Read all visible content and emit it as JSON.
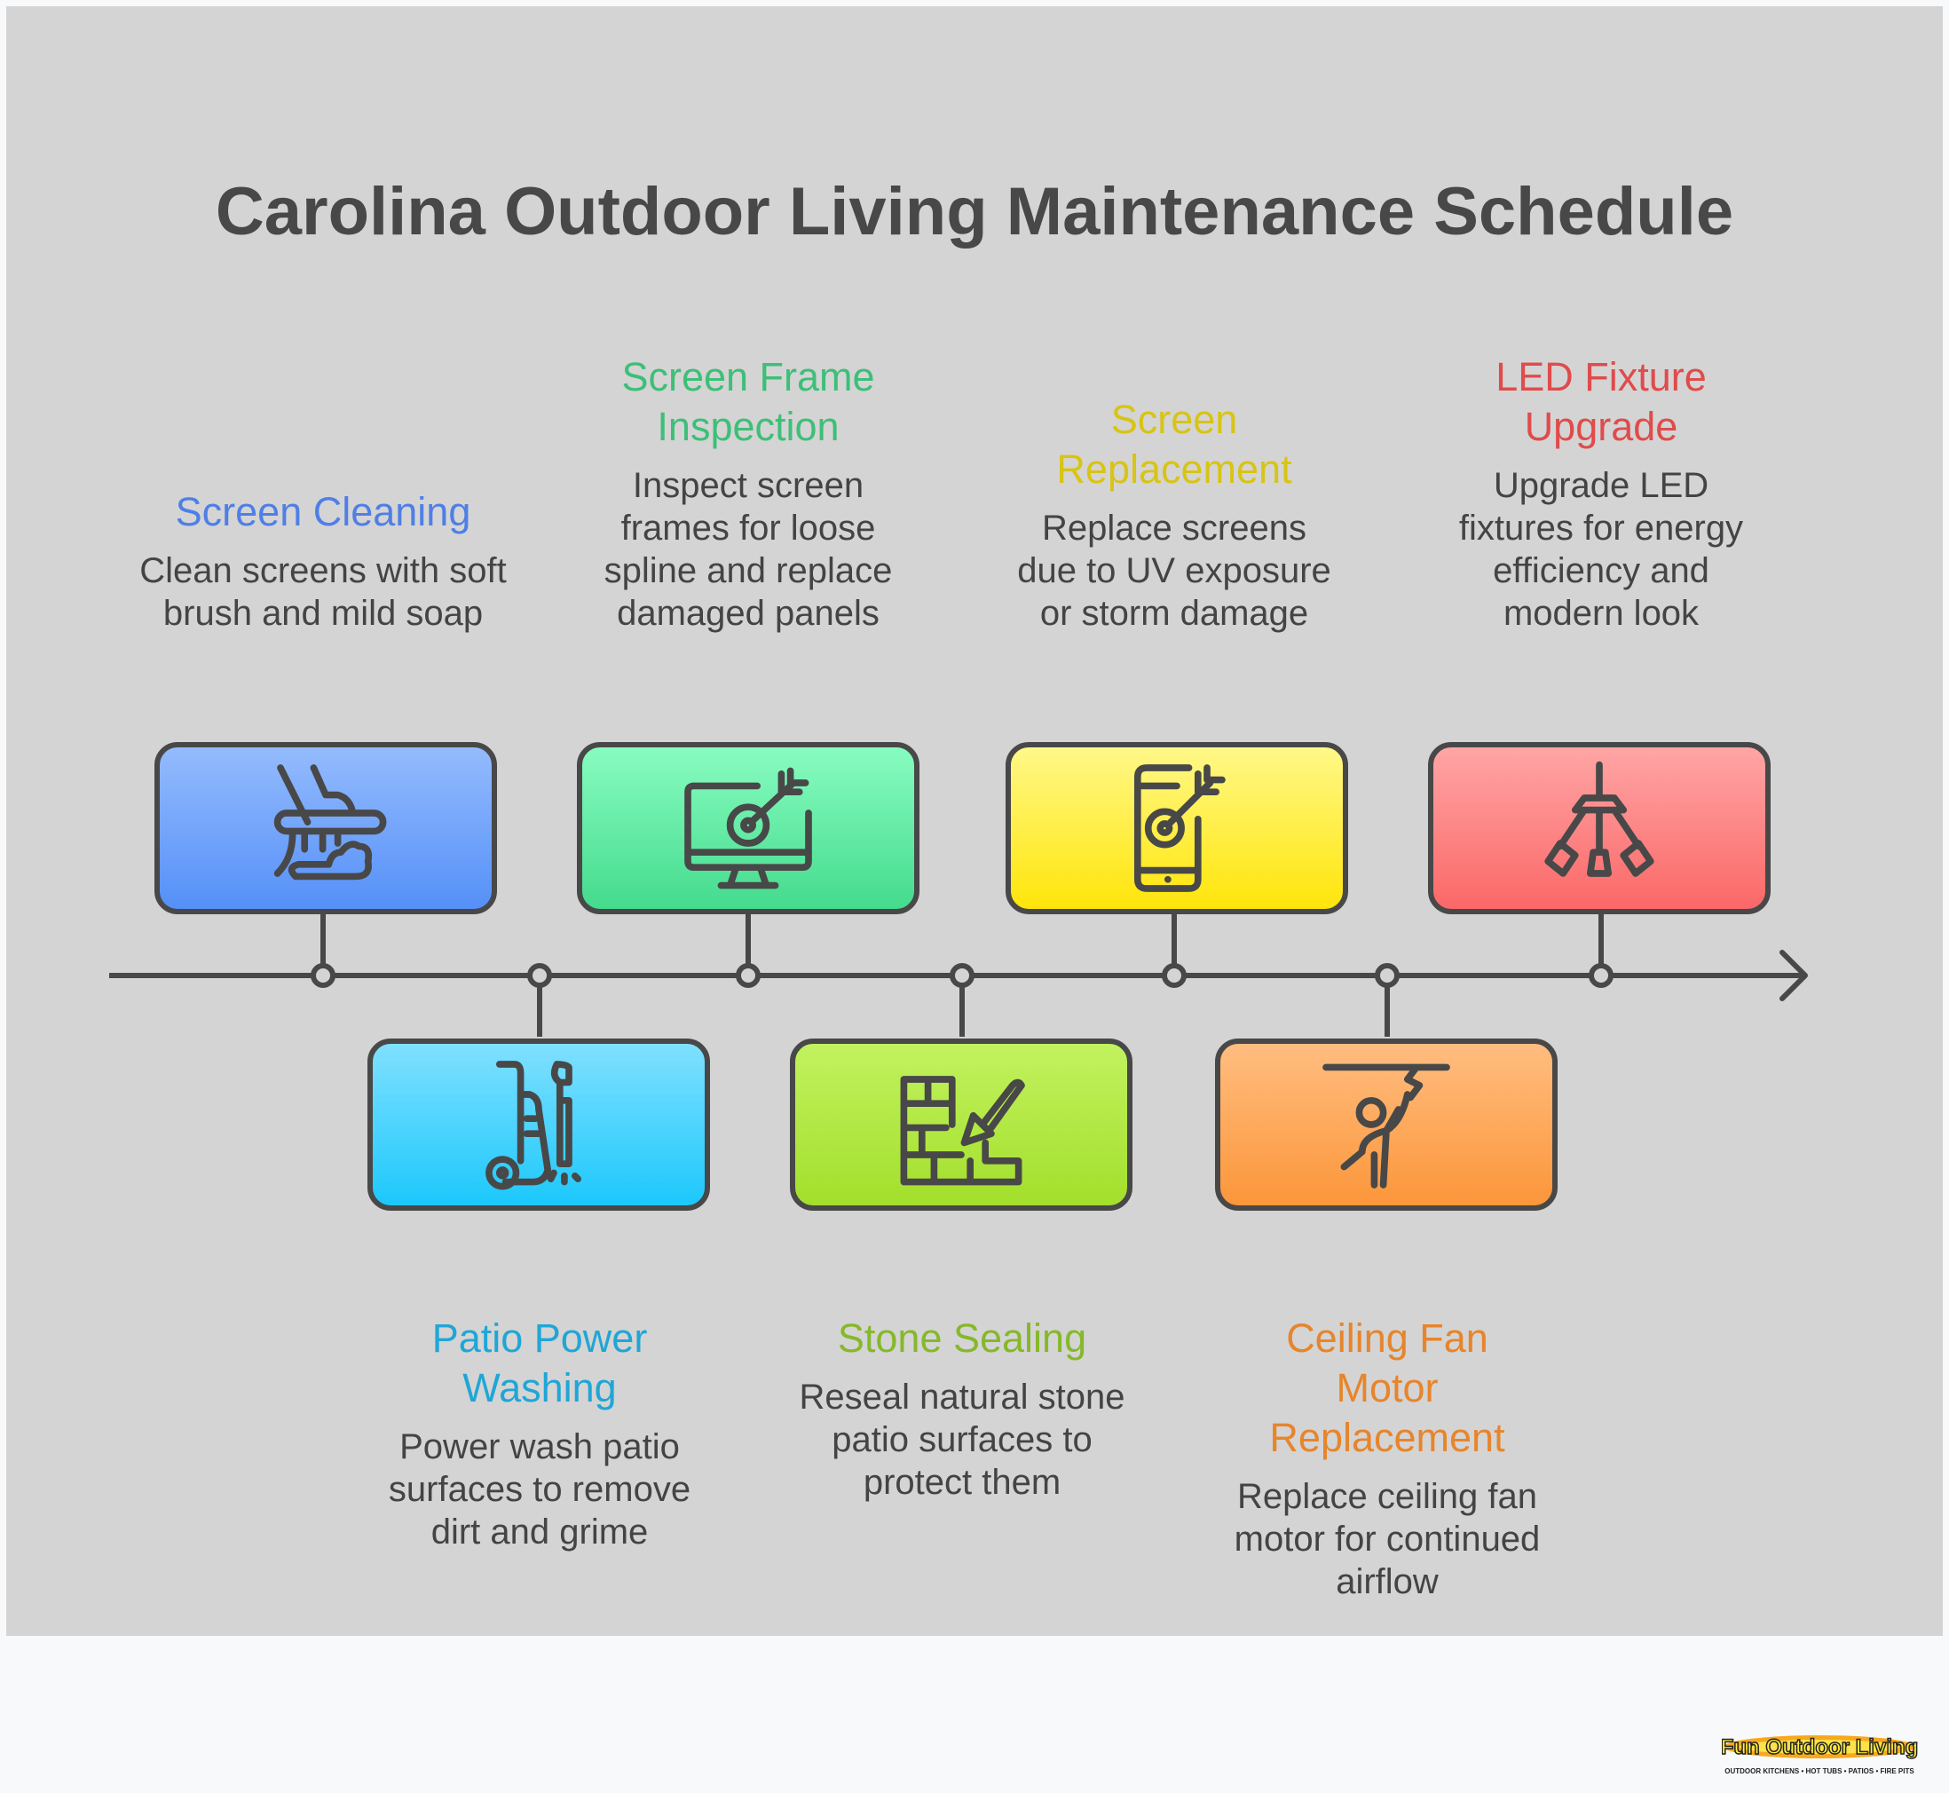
{
  "title": "Carolina Outdoor Living Maintenance Schedule",
  "steps": [
    {
      "title": "Screen Cleaning",
      "description": "Clean screens with soft brush and mild soap",
      "color": "#4f7fe6",
      "icon": "cleaning-brush-icon",
      "position": "top"
    },
    {
      "title": "Patio Power Washing",
      "description": "Power wash patio surfaces to remove dirt and grime",
      "color": "#1fa6d6",
      "icon": "pressure-washer-icon",
      "position": "bottom"
    },
    {
      "title": "Screen Frame Inspection",
      "description": "Inspect screen frames for loose spline and replace damaged panels",
      "color": "#3dbf78",
      "icon": "monitor-target-icon",
      "position": "top"
    },
    {
      "title": "Stone Sealing",
      "description": "Reseal natural stone patio surfaces to protect them",
      "color": "#86b82a",
      "icon": "brick-trowel-icon",
      "position": "bottom"
    },
    {
      "title": "Screen Replacement",
      "description": "Replace screens due to UV exposure or storm damage",
      "color": "#d8c414",
      "icon": "phone-target-icon",
      "position": "top"
    },
    {
      "title": "Ceiling Fan Motor Replacement",
      "description": "Replace ceiling fan motor for continued airflow",
      "color": "#e7852c",
      "icon": "person-repair-icon",
      "position": "bottom"
    },
    {
      "title": "LED Fixture Upgrade",
      "description": "Upgrade LED fixtures for energy efficiency and modern look",
      "color": "#e04b4b",
      "icon": "chandelier-icon",
      "position": "top"
    }
  ],
  "logo": {
    "name": "Fun Outdoor Living",
    "tagline": "OUTDOOR KITCHENS • HOT TUBS • PATIOS • FIRE PITS"
  }
}
